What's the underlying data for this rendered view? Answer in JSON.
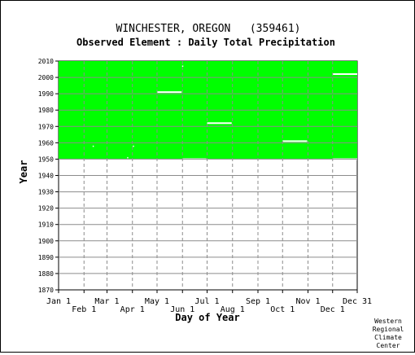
{
  "chart_data": {
    "type": "heatmap",
    "title": "WINCHESTER, OREGON   (359461)",
    "subtitle": "Observed Element : Daily Total Precipitation",
    "xlabel": "Day of Year",
    "ylabel": "Year",
    "xlim": [
      1,
      365
    ],
    "ylim": [
      1870,
      2010
    ],
    "grid": true,
    "x_ticks": [
      {
        "label": "Jan 1",
        "day": 1,
        "row": 1
      },
      {
        "label": "Feb 1",
        "day": 32,
        "row": 2
      },
      {
        "label": "Mar 1",
        "day": 60,
        "row": 1
      },
      {
        "label": "Apr 1",
        "day": 91,
        "row": 2
      },
      {
        "label": "May 1",
        "day": 121,
        "row": 1
      },
      {
        "label": "Jun 1",
        "day": 152,
        "row": 2
      },
      {
        "label": "Jul 1",
        "day": 182,
        "row": 1
      },
      {
        "label": "Aug 1",
        "day": 213,
        "row": 2
      },
      {
        "label": "Sep 1",
        "day": 244,
        "row": 1
      },
      {
        "label": "Oct 1",
        "day": 274,
        "row": 2
      },
      {
        "label": "Nov 1",
        "day": 305,
        "row": 1
      },
      {
        "label": "Dec 1",
        "day": 335,
        "row": 2
      },
      {
        "label": "Dec 31",
        "day": 365,
        "row": 1
      }
    ],
    "y_ticks": [
      1870,
      1880,
      1890,
      1900,
      1910,
      1920,
      1930,
      1940,
      1950,
      1960,
      1970,
      1980,
      1990,
      2000,
      2010
    ],
    "data_color": "#00ff00",
    "coverage": {
      "year_start": 1950,
      "year_end": 2010,
      "day_start": 1,
      "day_end": 365
    },
    "missing_segments": [
      {
        "year": 2002,
        "day_start": 335,
        "day_end": 365
      },
      {
        "year": 1991,
        "day_start": 121,
        "day_end": 151
      },
      {
        "year": 1972,
        "day_start": 182,
        "day_end": 212
      },
      {
        "year": 1961,
        "day_start": 274,
        "day_end": 304
      },
      {
        "year": 1950,
        "day_start": 152,
        "day_end": 181
      },
      {
        "year": 1950,
        "day_start": 335,
        "day_end": 365
      }
    ],
    "missing_points": [
      {
        "year": 2007,
        "day": 152
      },
      {
        "year": 1958,
        "day": 43
      },
      {
        "year": 1958,
        "day": 92
      },
      {
        "year": 1951,
        "day": 85
      }
    ]
  },
  "credit": [
    "Western",
    "Regional",
    "Climate",
    "Center"
  ]
}
